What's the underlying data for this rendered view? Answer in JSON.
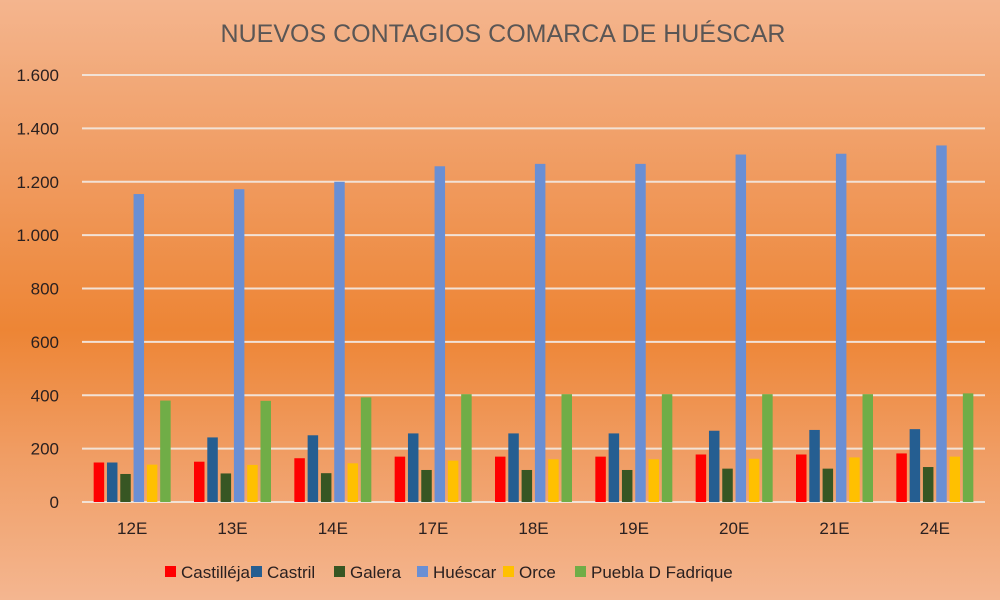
{
  "chart_data": {
    "type": "bar",
    "title": "NUEVOS CONTAGIOS COMARCA DE HUÉSCAR",
    "xlabel": "",
    "ylabel": "",
    "ylim": [
      0,
      1600
    ],
    "yticks": [
      0,
      200,
      400,
      600,
      800,
      1000,
      1200,
      1400,
      1600
    ],
    "ytick_labels": [
      "0",
      "200",
      "400",
      "600",
      "800",
      "1.000",
      "1.200",
      "1.400",
      "1.600"
    ],
    "grid": true,
    "legend_position": "bottom",
    "categories": [
      "12E",
      "13E",
      "14E",
      "17E",
      "18E",
      "19E",
      "20E",
      "21E",
      "24E"
    ],
    "series": [
      {
        "name": "Castilléjar",
        "color": "#ff0000",
        "values": [
          148,
          151,
          164,
          170,
          170,
          170,
          178,
          178,
          182
        ]
      },
      {
        "name": "Castril",
        "color": "#255e91",
        "values": [
          148,
          242,
          250,
          257,
          257,
          257,
          267,
          270,
          273
        ]
      },
      {
        "name": "Galera",
        "color": "#375623",
        "values": [
          105,
          107,
          108,
          120,
          120,
          120,
          125,
          125,
          131
        ]
      },
      {
        "name": "Huéscar",
        "color": "#6a8fd4",
        "values": [
          1154,
          1172,
          1200,
          1258,
          1267,
          1267,
          1302,
          1305,
          1336
        ]
      },
      {
        "name": "Orce",
        "color": "#ffc000",
        "values": [
          140,
          139,
          145,
          155,
          160,
          160,
          162,
          167,
          170
        ]
      },
      {
        "name": "Puebla D Fadrique",
        "color": "#70ad47",
        "values": [
          380,
          379,
          392,
          404,
          404,
          404,
          404,
          404,
          407
        ]
      }
    ]
  }
}
